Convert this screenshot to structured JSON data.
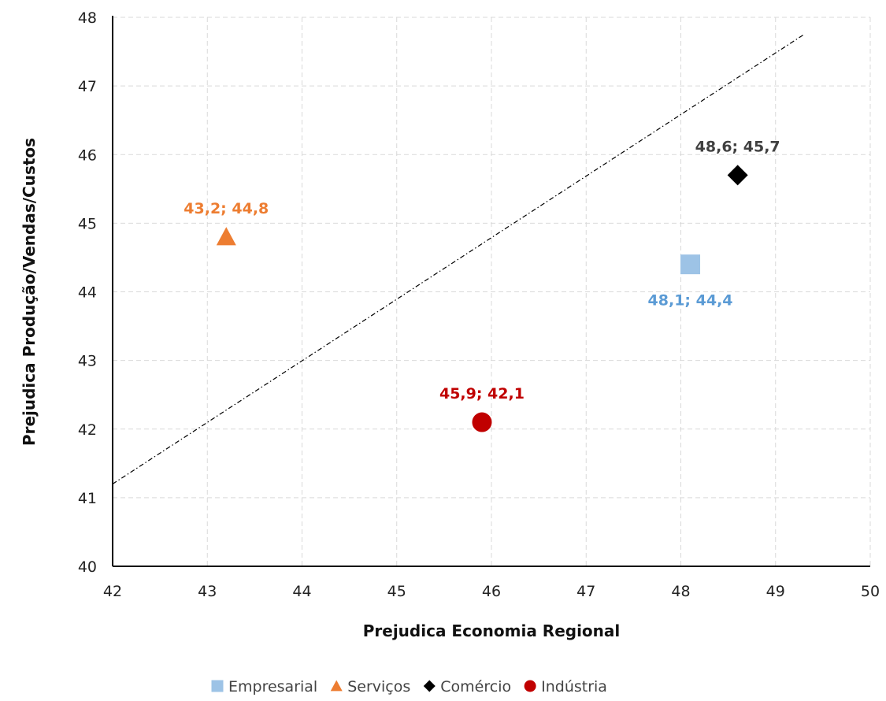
{
  "chart_data": {
    "type": "scatter",
    "xlabel": "Prejudica Economia Regional",
    "ylabel": "Prejudica Produção/Vendas/Custos",
    "xlim": [
      42,
      50
    ],
    "ylim": [
      40,
      48
    ],
    "x_ticks": [
      "42",
      "43",
      "44",
      "45",
      "46",
      "47",
      "48",
      "49",
      "50"
    ],
    "y_ticks": [
      "40",
      "41",
      "42",
      "43",
      "44",
      "45",
      "46",
      "47",
      "48"
    ],
    "grid": true,
    "legend_position": "bottom",
    "reference_line": {
      "style": "dash-dot",
      "from": [
        42,
        41.2
      ],
      "to": [
        49.3,
        47.75
      ]
    },
    "series": [
      {
        "name": "Empresarial",
        "marker": "square",
        "color": "#9dc3e6",
        "label_color": "#5b9bd5",
        "x": 48.1,
        "y": 44.4,
        "label": "48,1; 44,4",
        "label_position": "below"
      },
      {
        "name": "Serviços",
        "marker": "triangle",
        "color": "#ed7d31",
        "label_color": "#ed7d31",
        "x": 43.2,
        "y": 44.8,
        "label": "43,2; 44,8",
        "label_position": "above"
      },
      {
        "name": "Comércio",
        "marker": "diamond",
        "color": "#000000",
        "label_color": "#404040",
        "x": 48.6,
        "y": 45.7,
        "label": "48,6; 45,7",
        "label_position": "above"
      },
      {
        "name": "Indústria",
        "marker": "circle",
        "color": "#c00000",
        "label_color": "#c00000",
        "x": 45.9,
        "y": 42.1,
        "label": "45,9; 42,1",
        "label_position": "above"
      }
    ]
  }
}
